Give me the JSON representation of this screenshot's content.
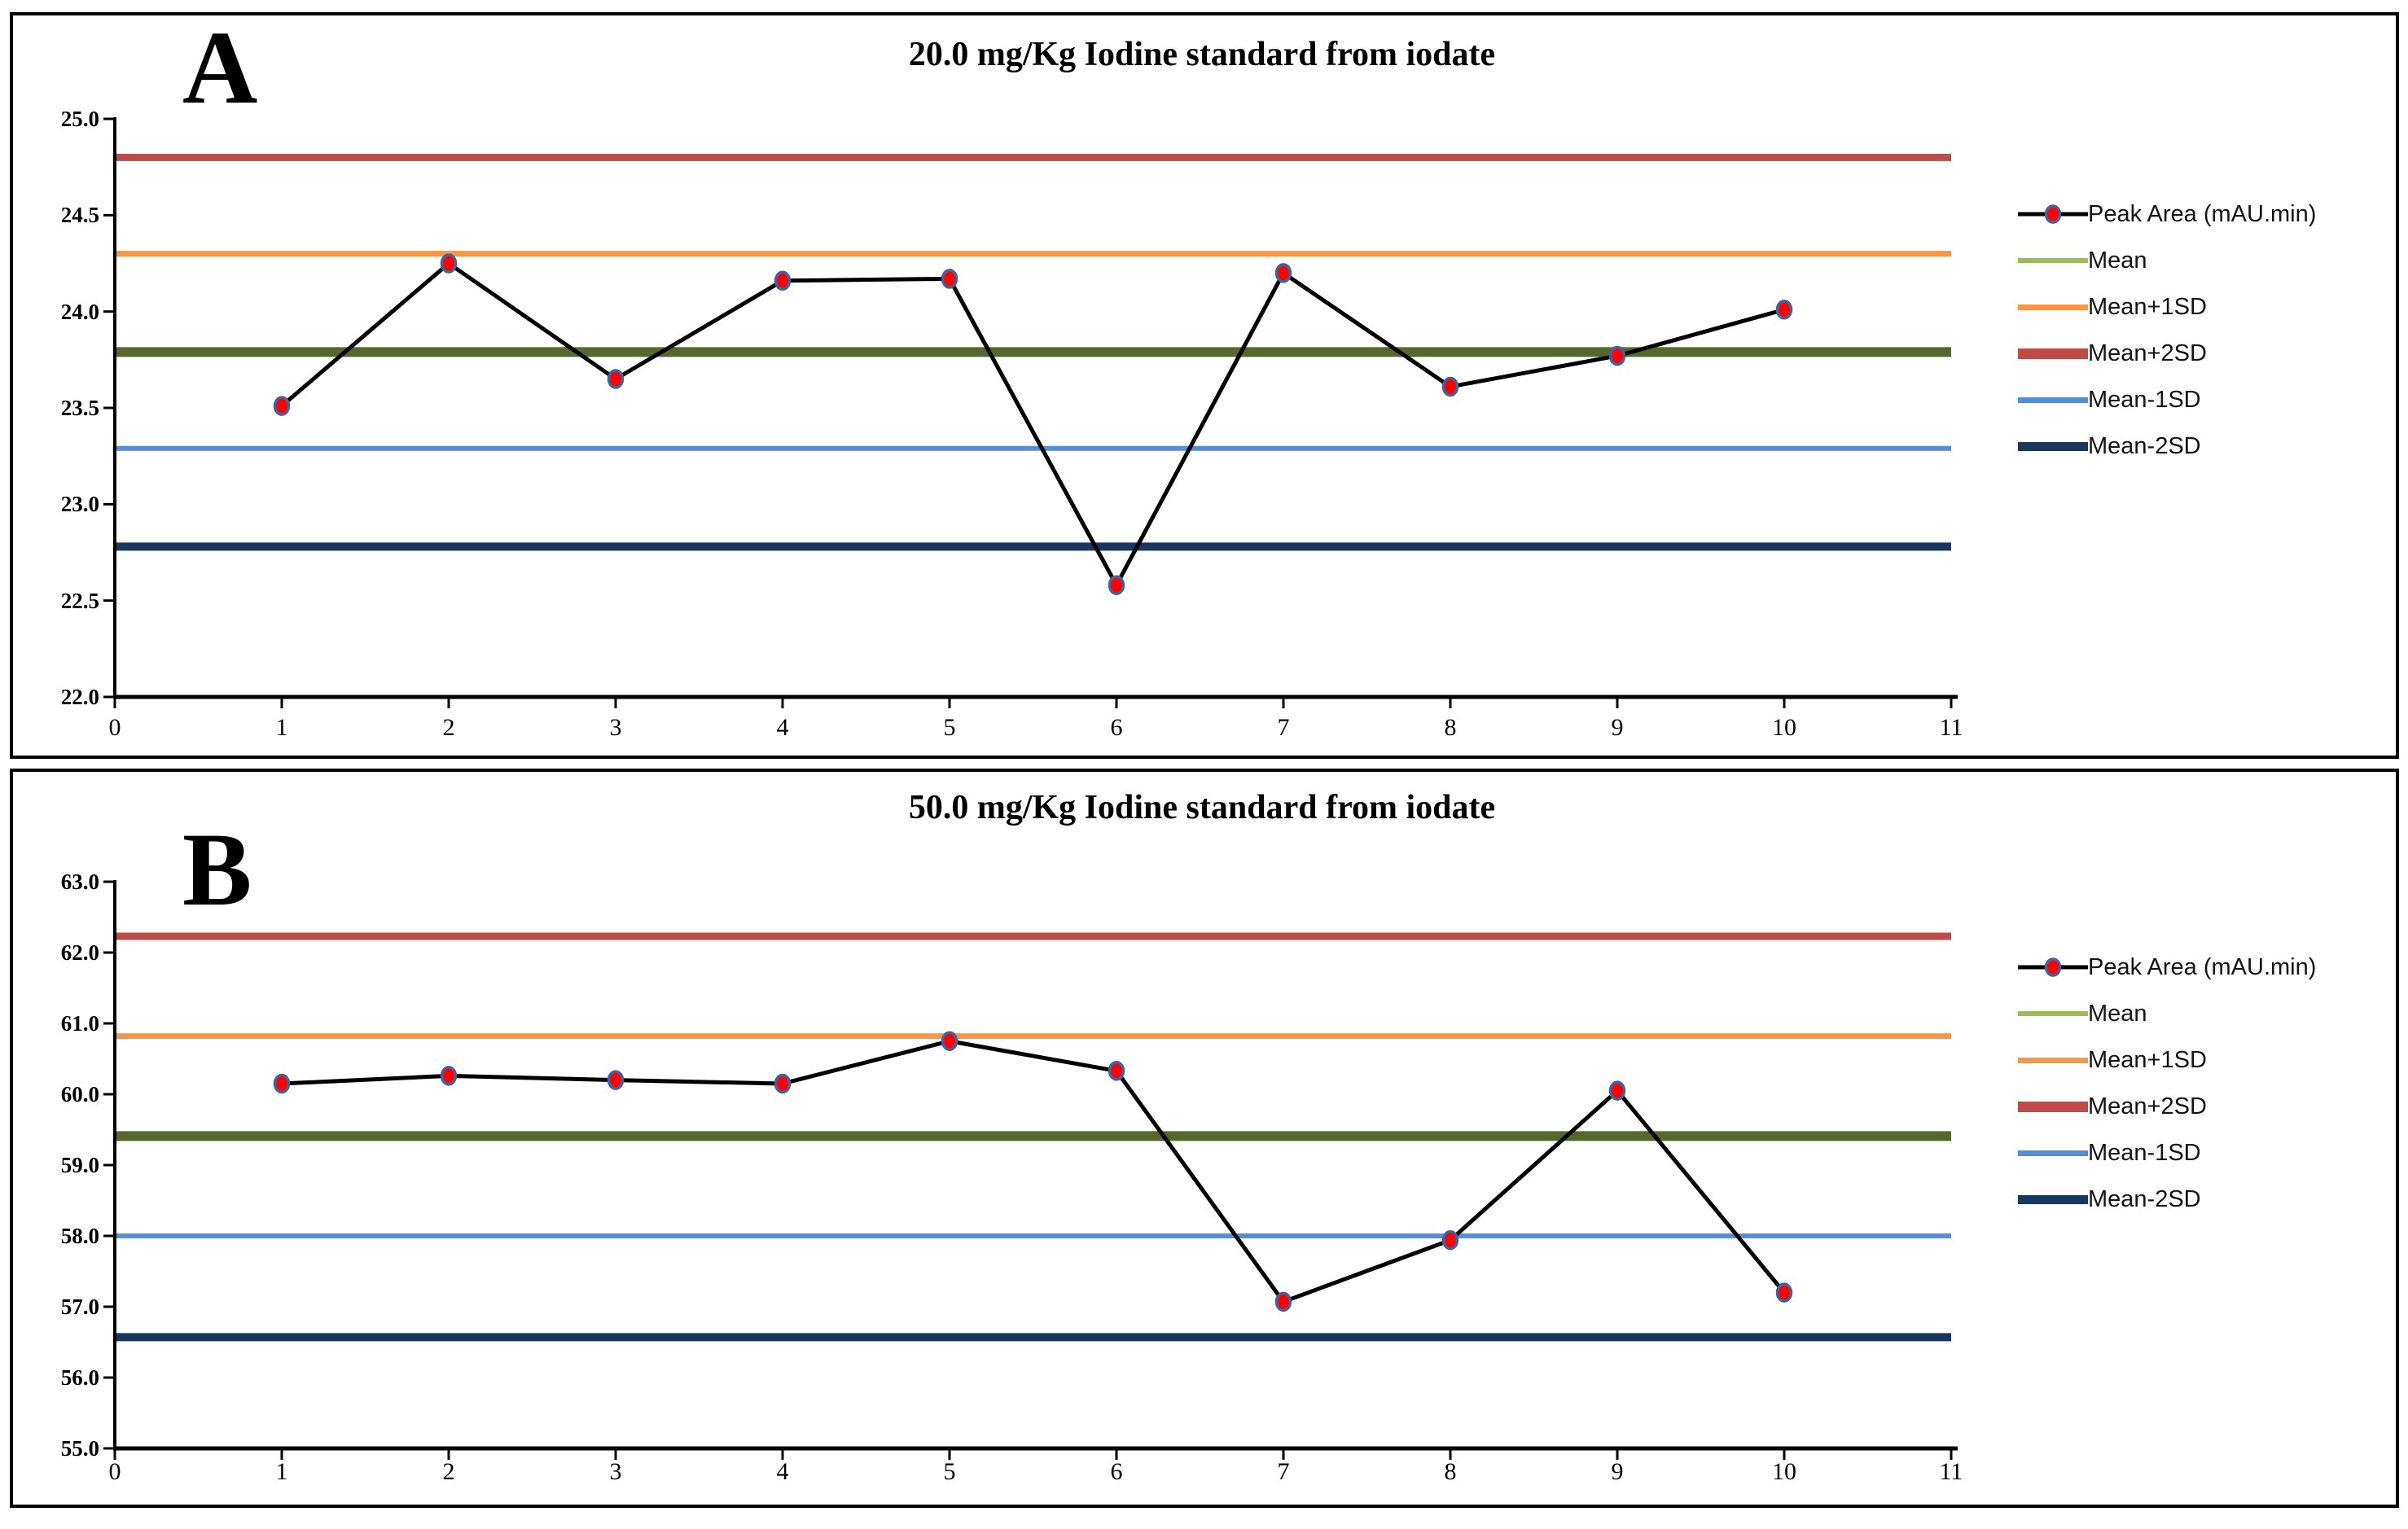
{
  "figure": {
    "background": "#ffffff",
    "panel_border_color": "#000000"
  },
  "colors": {
    "series_line": "#000000",
    "marker_fill": "#FF0000",
    "marker_stroke": "#44619D",
    "mean_chart": "#55682D",
    "mean_legend": "#9BBB59",
    "plus1": "#F79646",
    "plus2": "#BE4B48",
    "minus1": "#558ED5",
    "minus2": "#17375E",
    "axis": "#000000",
    "text": "#000000"
  },
  "legend": {
    "items": [
      {
        "label": "Peak Area (mAU.min)",
        "swatch": "series"
      },
      {
        "label": "Mean",
        "swatch": "mean"
      },
      {
        "label": "Mean+1SD",
        "swatch": "plus1"
      },
      {
        "label": "Mean+2SD",
        "swatch": "plus2"
      },
      {
        "label": "Mean-1SD",
        "swatch": "minus1"
      },
      {
        "label": "Mean-2SD",
        "swatch": "minus2"
      }
    ]
  },
  "chart_data": [
    {
      "type": "line",
      "panel_label": "A",
      "title": "20.0 mg/Kg Iodine standard from iodate",
      "x": [
        1,
        2,
        3,
        4,
        5,
        6,
        7,
        8,
        9,
        10
      ],
      "series": [
        {
          "name": "Peak Area (mAU.min)",
          "values": [
            23.51,
            24.25,
            23.65,
            24.16,
            24.17,
            22.58,
            24.2,
            23.61,
            23.77,
            24.01
          ]
        }
      ],
      "control_lines": {
        "mean": 23.79,
        "mean_plus_1sd": 24.3,
        "mean_plus_2sd": 24.8,
        "mean_minus_1sd": 23.29,
        "mean_minus_2sd": 22.78
      },
      "xlim": [
        0,
        11
      ],
      "ylim": [
        22.0,
        25.0
      ],
      "xticks": [
        0,
        1,
        2,
        3,
        4,
        5,
        6,
        7,
        8,
        9,
        10,
        11
      ],
      "xtick_labels": [
        "0",
        "1",
        "2",
        "3",
        "4",
        "5",
        "6",
        "7",
        "8",
        "9",
        "10",
        "11"
      ],
      "yticks": [
        25.0,
        24.5,
        24.0,
        23.5,
        23.0,
        22.5,
        22.0
      ],
      "ytick_labels": [
        "25.0",
        "24.5",
        "24.0",
        "23.5",
        "23.0",
        "22.5",
        "22.0"
      ],
      "grid": false,
      "legend_position": "right"
    },
    {
      "type": "line",
      "panel_label": "B",
      "title": "50.0 mg/Kg Iodine standard from iodate",
      "x": [
        1,
        2,
        3,
        4,
        5,
        6,
        7,
        8,
        9,
        10
      ],
      "series": [
        {
          "name": "Peak Area (mAU.min)",
          "values": [
            60.15,
            60.26,
            60.2,
            60.15,
            60.75,
            60.33,
            57.07,
            57.94,
            60.05,
            57.2
          ]
        }
      ],
      "control_lines": {
        "mean": 59.41,
        "mean_plus_1sd": 60.82,
        "mean_plus_2sd": 62.23,
        "mean_minus_1sd": 58.0,
        "mean_minus_2sd": 56.57
      },
      "xlim": [
        0,
        11
      ],
      "ylim": [
        55.0,
        63.0
      ],
      "xticks": [
        0,
        1,
        2,
        3,
        4,
        5,
        6,
        7,
        8,
        9,
        10,
        11
      ],
      "xtick_labels": [
        "0",
        "1",
        "2",
        "3",
        "4",
        "5",
        "6",
        "7",
        "8",
        "9",
        "10",
        "11"
      ],
      "yticks": [
        63.0,
        62.0,
        61.0,
        60.0,
        59.0,
        58.0,
        57.0,
        56.0,
        55.0
      ],
      "ytick_labels": [
        "63.0",
        "62.0",
        "61.0",
        "60.0",
        "59.0",
        "58.0",
        "57.0",
        "56.0",
        "55.0"
      ],
      "grid": false,
      "legend_position": "right"
    }
  ]
}
